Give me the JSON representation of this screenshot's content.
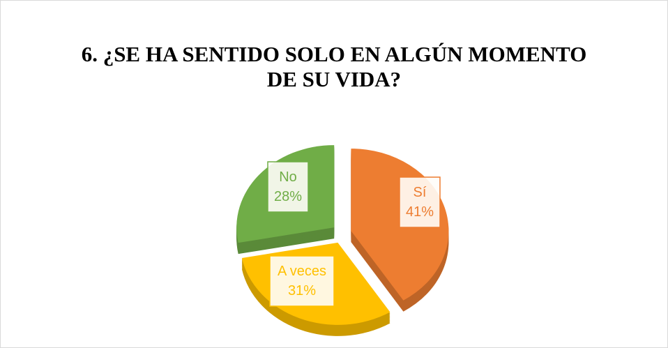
{
  "chart_data": {
    "type": "pie",
    "title": "6. ¿SE HA SENTIDO SOLO EN ALGÚN MOMENTO DE SU VIDA?",
    "categories": [
      "Sí",
      "A veces",
      "No"
    ],
    "values": [
      41,
      31,
      28
    ],
    "value_labels": [
      "41%",
      "31%",
      "28%"
    ],
    "colors": [
      "#ed7d31",
      "#ffc000",
      "#70ad47"
    ]
  }
}
